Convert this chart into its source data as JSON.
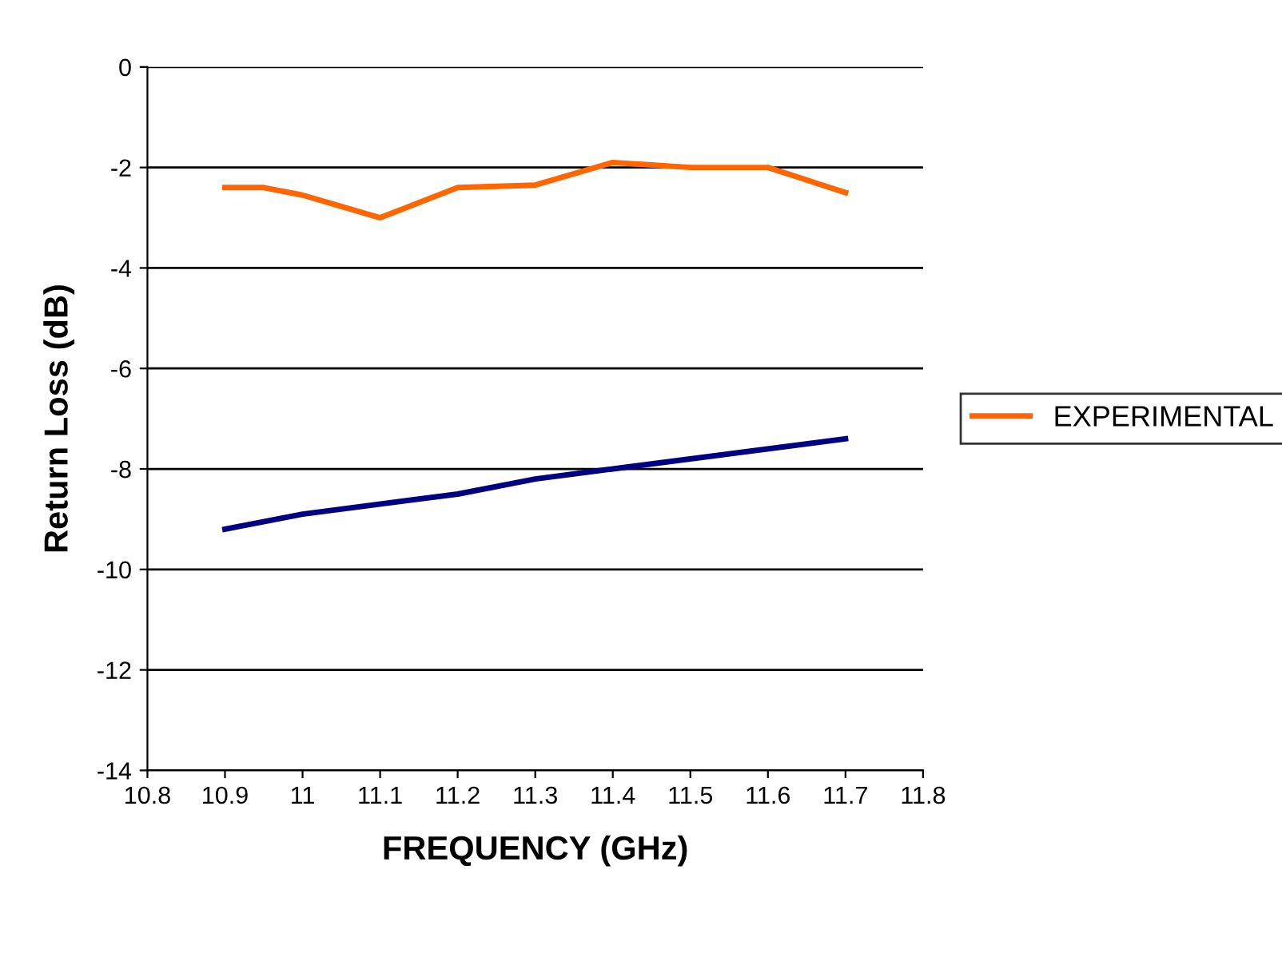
{
  "chart_data": {
    "type": "line",
    "xlabel": "FREQUENCY (GHz)",
    "ylabel": "Return Loss (dB)",
    "xlim": [
      10.8,
      11.8
    ],
    "xticks": [
      {
        "value": 10.8,
        "label": "10.8"
      },
      {
        "value": 10.9,
        "label": "10.9"
      },
      {
        "value": 11,
        "label": "11"
      },
      {
        "value": 11.1,
        "label": "11.1"
      },
      {
        "value": 11.2,
        "label": "11.2"
      },
      {
        "value": 11.3,
        "label": "11.3"
      },
      {
        "value": 11.4,
        "label": "11.4"
      },
      {
        "value": 11.5,
        "label": "11.5"
      },
      {
        "value": 11.6,
        "label": "11.6"
      },
      {
        "value": 11.7,
        "label": "11.7"
      },
      {
        "value": 11.8,
        "label": "11.8"
      }
    ],
    "ylim": [
      -14,
      0
    ],
    "yticks": [
      -14,
      -12,
      -10,
      -8,
      -6,
      -4,
      -2,
      0
    ],
    "grid": "y",
    "legend": "right",
    "marker": "none",
    "line_style": "solid",
    "series": [
      {
        "color": "#000080",
        "x": [
          10.9,
          11.0,
          11.2,
          11.3,
          11.4,
          11.7
        ],
        "values": [
          -9.2,
          -8.9,
          -8.5,
          -8.2,
          -8.0,
          -7.4
        ]
      },
      {
        "name": "EXPERIMENTAL",
        "color": "#ff6600",
        "x": [
          10.9,
          10.95,
          11.0,
          11.1,
          11.2,
          11.3,
          11.4,
          11.45,
          11.5,
          11.6,
          11.7
        ],
        "values": [
          -2.4,
          -2.4,
          -2.55,
          -3.0,
          -2.4,
          -2.35,
          -1.9,
          -1.95,
          -2.0,
          -2.0,
          -2.5
        ]
      }
    ]
  }
}
